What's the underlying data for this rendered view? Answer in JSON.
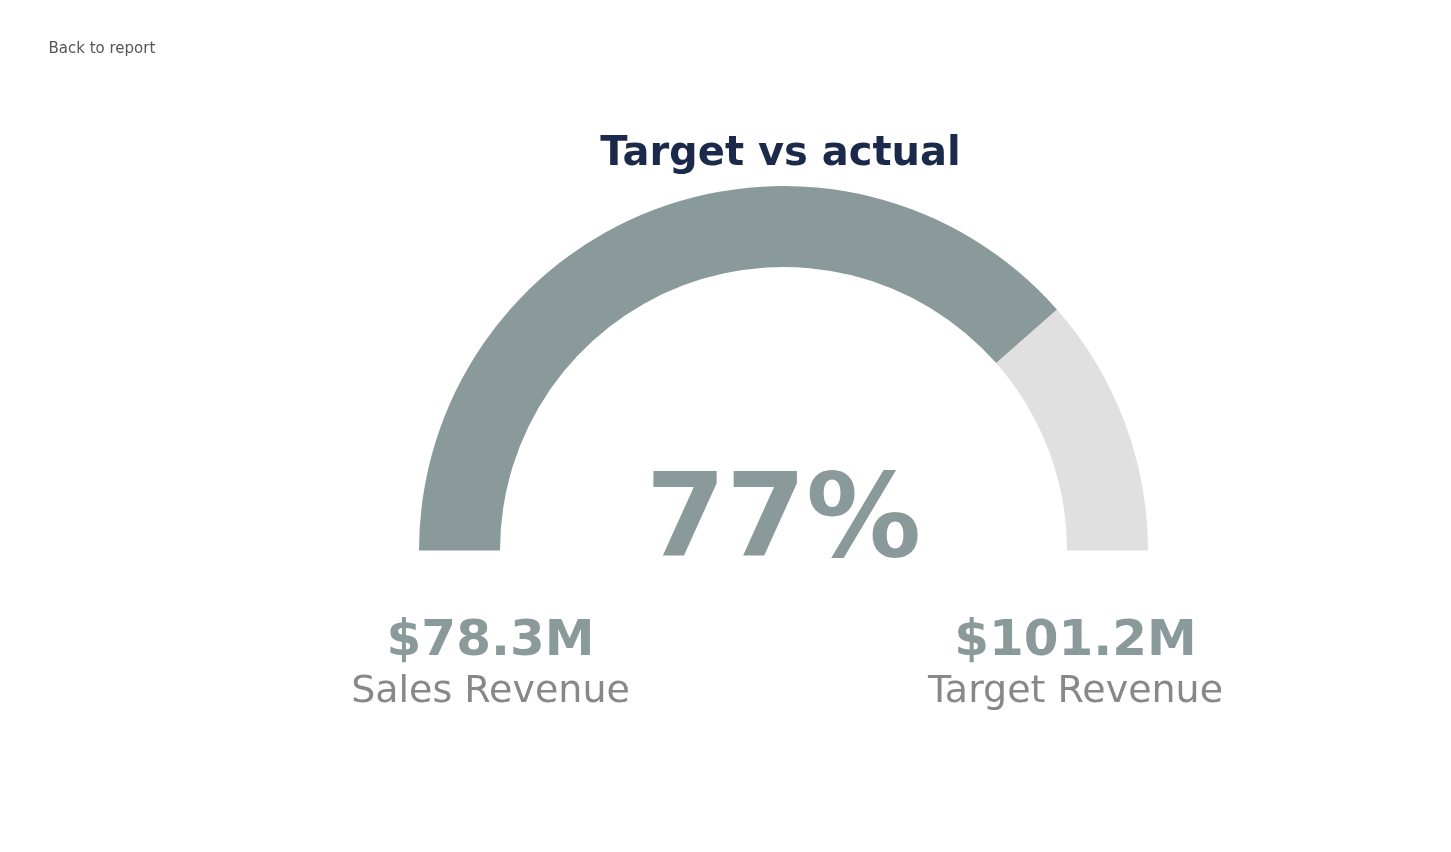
{
  "chart_data": {
    "type": "donut",
    "title": "Target vs actual",
    "categories": [
      null,
      null
    ],
    "values": [
      77,
      23
    ],
    "colors": [
      "#8a9a9b",
      "#e0e0e0"
    ],
    "value_labels": [
      "77%",
      null
    ],
    "annotations": [
      "Back to report",
      "$78.3M",
      "$101.2M",
      "Sales Revenue",
      "Target Revenue"
    ]
  }
}
